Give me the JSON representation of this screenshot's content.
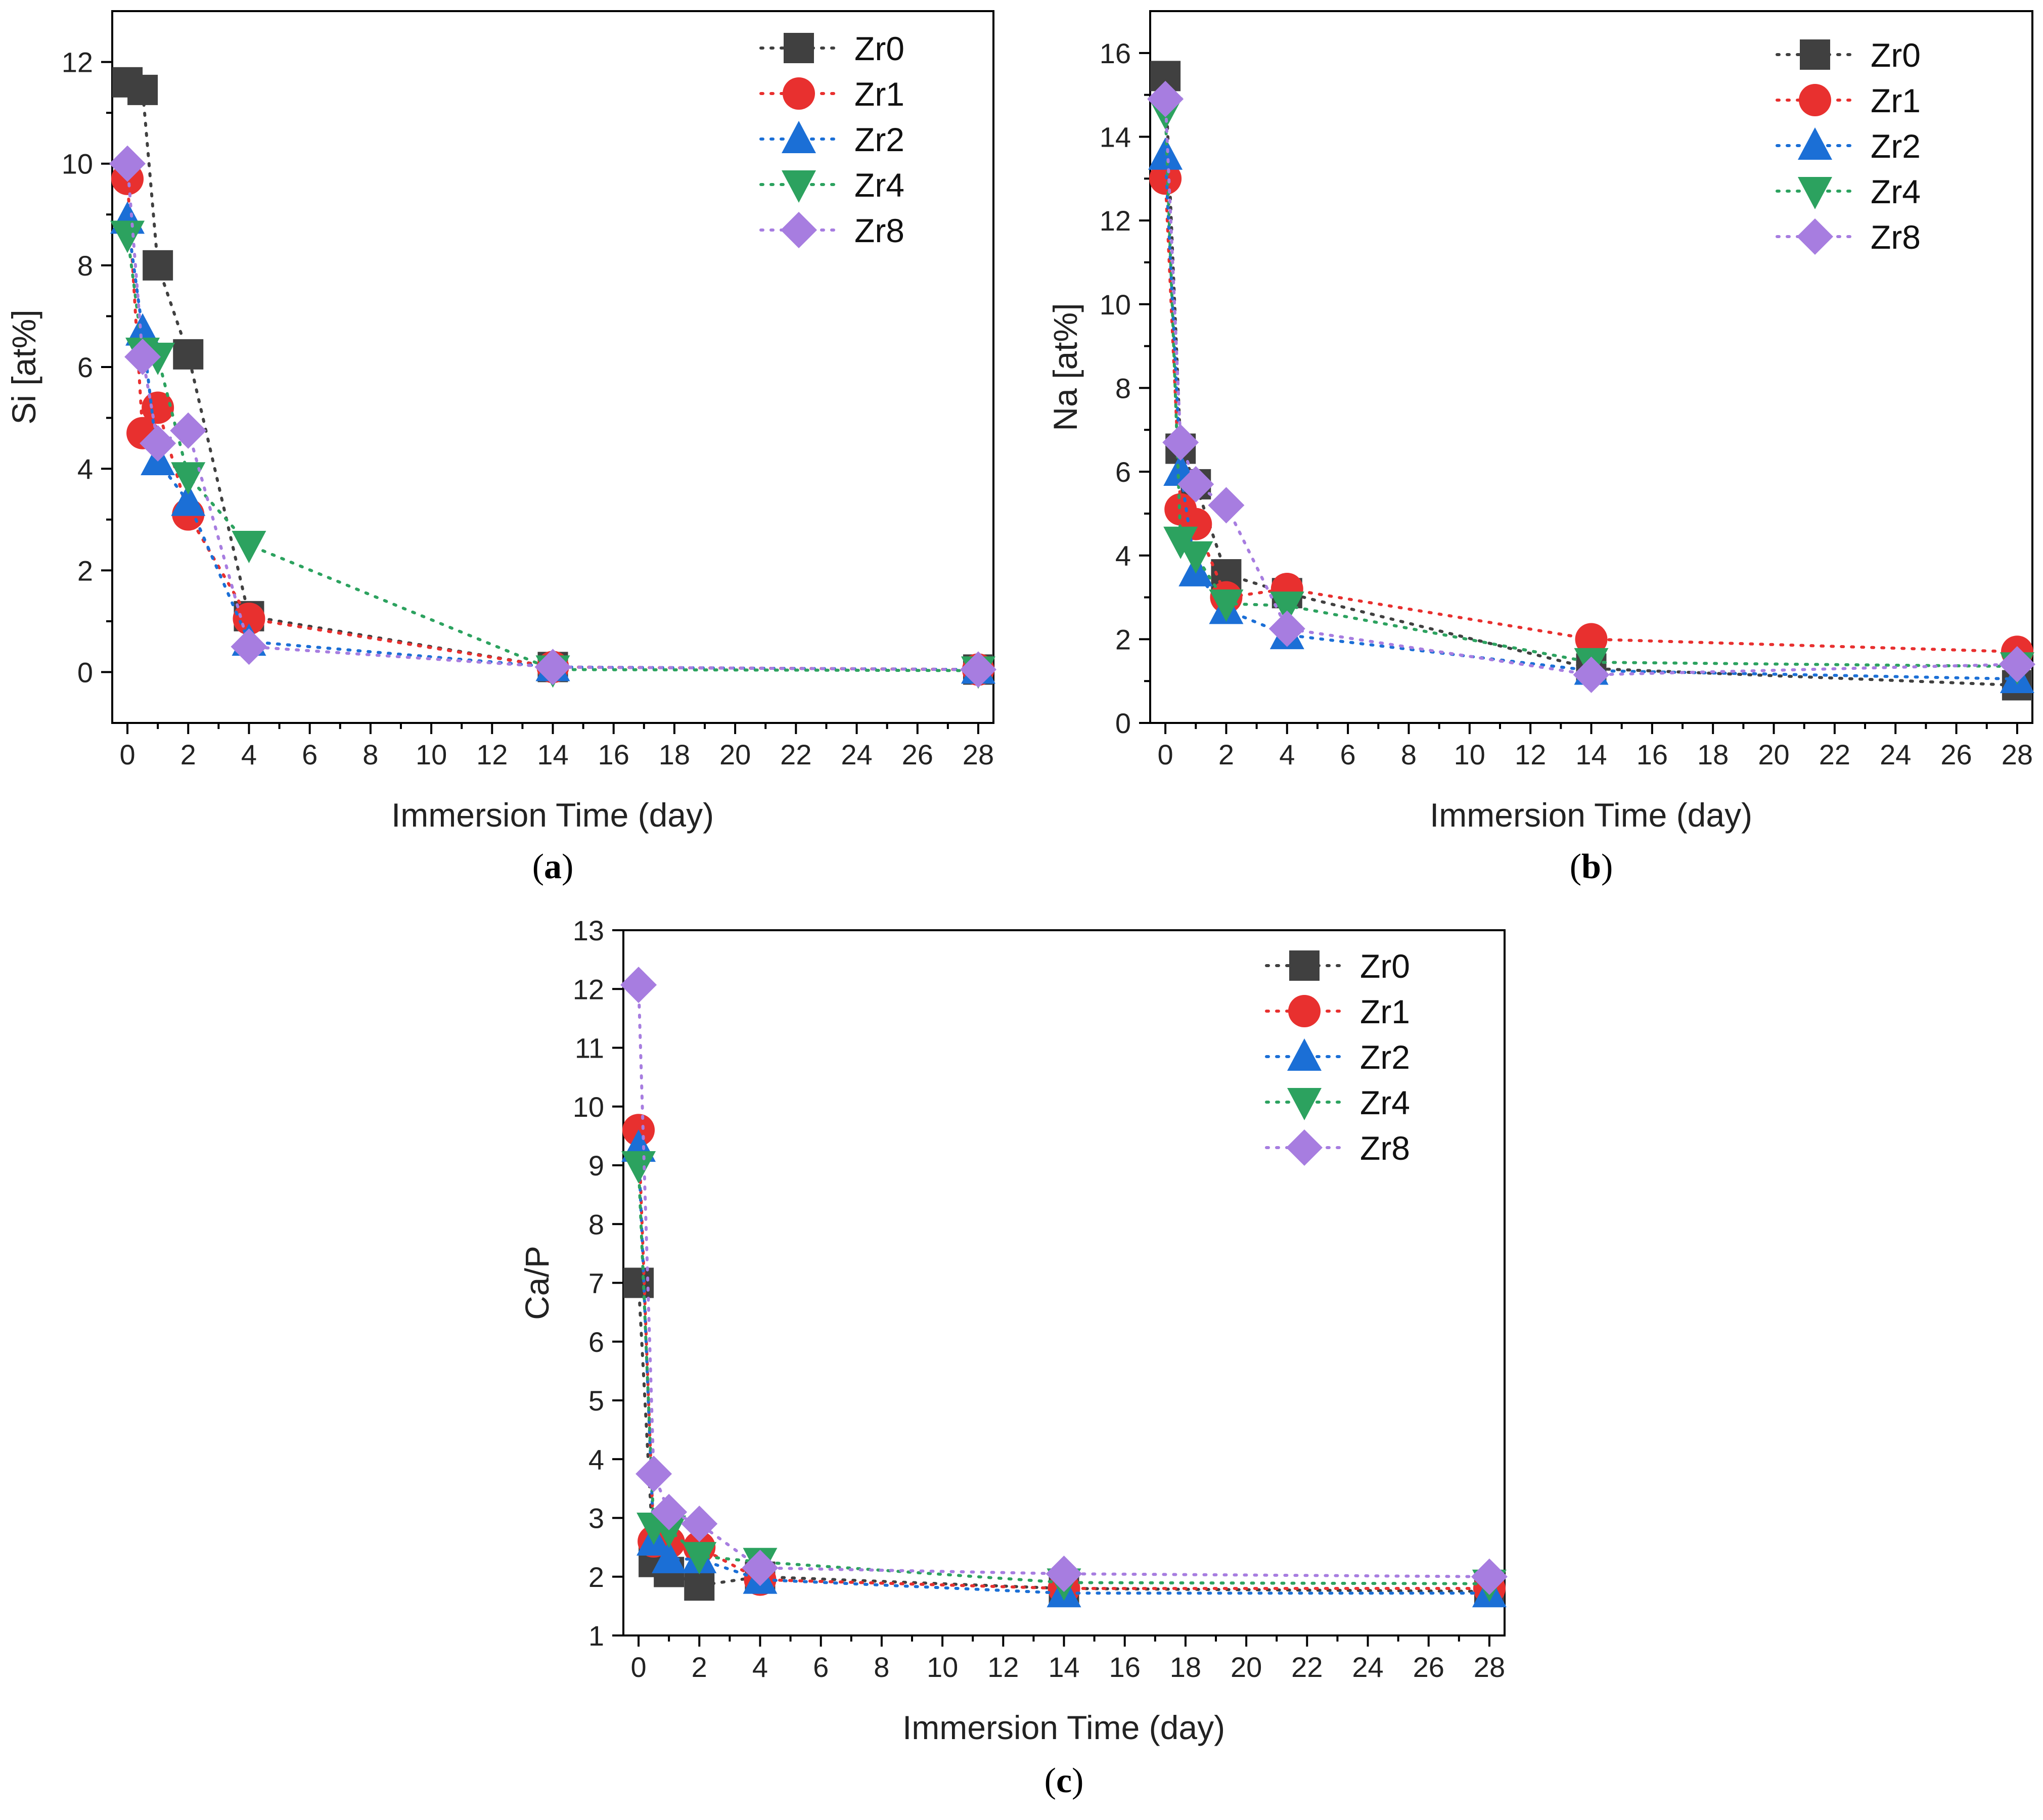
{
  "chart_data": [
    {
      "type": "line",
      "panel_label": "a",
      "title": "",
      "xlabel": "Immersion Time (day)",
      "ylabel": "Si [at%]",
      "xlim": [
        -0.5,
        28.5
      ],
      "ylim": [
        -1,
        13
      ],
      "xticks": [
        0,
        2,
        4,
        6,
        8,
        10,
        12,
        14,
        16,
        18,
        20,
        22,
        24,
        26,
        28
      ],
      "yticks": [
        0,
        2,
        4,
        6,
        8,
        10,
        12
      ],
      "legend_position": "top-right",
      "x": [
        0,
        0.5,
        1,
        2,
        4,
        14,
        28
      ],
      "series": [
        {
          "name": "Zr0",
          "color": "#404040",
          "marker": "square",
          "values": [
            11.6,
            11.45,
            8.0,
            6.25,
            1.1,
            0.1,
            0.05
          ]
        },
        {
          "name": "Zr1",
          "color": "#e8302f",
          "marker": "circle",
          "values": [
            9.7,
            4.7,
            5.2,
            3.1,
            1.05,
            0.1,
            0.05
          ]
        },
        {
          "name": "Zr2",
          "color": "#1b6fd6",
          "marker": "triangle-up",
          "values": [
            8.9,
            6.7,
            4.15,
            3.35,
            0.6,
            0.1,
            0.05
          ]
        },
        {
          "name": "Zr4",
          "color": "#2ca25f",
          "marker": "triangle-down",
          "values": [
            8.6,
            6.3,
            6.2,
            3.85,
            2.5,
            0.05,
            0.03
          ]
        },
        {
          "name": "Zr8",
          "color": "#a77de0",
          "marker": "diamond",
          "values": [
            10.0,
            6.2,
            4.5,
            4.75,
            0.5,
            0.1,
            0.05
          ]
        }
      ]
    },
    {
      "type": "line",
      "panel_label": "b",
      "title": "",
      "xlabel": "Immersion Time (day)",
      "ylabel": "Na [at%]",
      "xlim": [
        -0.5,
        28.5
      ],
      "ylim": [
        0,
        17
      ],
      "xticks": [
        0,
        2,
        4,
        6,
        8,
        10,
        12,
        14,
        16,
        18,
        20,
        22,
        24,
        26,
        28
      ],
      "yticks": [
        0,
        2,
        4,
        6,
        8,
        10,
        12,
        14,
        16
      ],
      "legend_position": "top-right",
      "x": [
        0,
        0.5,
        1,
        2,
        4,
        14,
        28
      ],
      "series": [
        {
          "name": "Zr0",
          "color": "#404040",
          "marker": "square",
          "values": [
            15.45,
            6.55,
            5.7,
            3.55,
            3.1,
            1.3,
            0.9
          ]
        },
        {
          "name": "Zr1",
          "color": "#e8302f",
          "marker": "circle",
          "values": [
            13.0,
            5.1,
            4.75,
            3.0,
            3.2,
            2.0,
            1.7
          ]
        },
        {
          "name": "Zr2",
          "color": "#1b6fd6",
          "marker": "triangle-up",
          "values": [
            13.55,
            6.0,
            3.6,
            2.7,
            2.1,
            1.25,
            1.05
          ]
        },
        {
          "name": "Zr4",
          "color": "#2ca25f",
          "marker": "triangle-down",
          "values": [
            14.6,
            4.35,
            4.0,
            2.85,
            2.8,
            1.45,
            1.35
          ]
        },
        {
          "name": "Zr8",
          "color": "#a77de0",
          "marker": "diamond",
          "values": [
            14.9,
            6.7,
            5.7,
            5.2,
            2.25,
            1.15,
            1.4
          ]
        }
      ]
    },
    {
      "type": "line",
      "panel_label": "c",
      "title": "",
      "xlabel": "Immersion Time (day)",
      "ylabel": "Ca/P",
      "xlim": [
        -0.5,
        28.5
      ],
      "ylim": [
        1,
        13
      ],
      "xticks": [
        0,
        2,
        4,
        6,
        8,
        10,
        12,
        14,
        16,
        18,
        20,
        22,
        24,
        26,
        28
      ],
      "yticks": [
        1,
        2,
        3,
        4,
        5,
        6,
        7,
        8,
        9,
        10,
        11,
        12,
        13
      ],
      "legend_position": "top-right",
      "x": [
        0,
        0.5,
        1,
        2,
        4,
        14,
        28
      ],
      "series": [
        {
          "name": "Zr0",
          "color": "#404040",
          "marker": "square",
          "values": [
            7.0,
            2.25,
            2.08,
            1.85,
            2.0,
            1.8,
            1.75
          ]
        },
        {
          "name": "Zr1",
          "color": "#e8302f",
          "marker": "circle",
          "values": [
            9.6,
            2.6,
            2.58,
            2.5,
            1.95,
            1.8,
            1.8
          ]
        },
        {
          "name": "Zr2",
          "color": "#1b6fd6",
          "marker": "triangle-up",
          "values": [
            9.3,
            2.6,
            2.3,
            2.3,
            1.95,
            1.72,
            1.72
          ]
        },
        {
          "name": "Zr4",
          "color": "#2ca25f",
          "marker": "triangle-down",
          "values": [
            9.0,
            2.85,
            2.8,
            2.35,
            2.25,
            1.9,
            1.88
          ]
        },
        {
          "name": "Zr8",
          "color": "#a77de0",
          "marker": "diamond",
          "values": [
            12.07,
            3.75,
            3.1,
            2.9,
            2.15,
            2.05,
            2.0
          ]
        }
      ]
    }
  ]
}
